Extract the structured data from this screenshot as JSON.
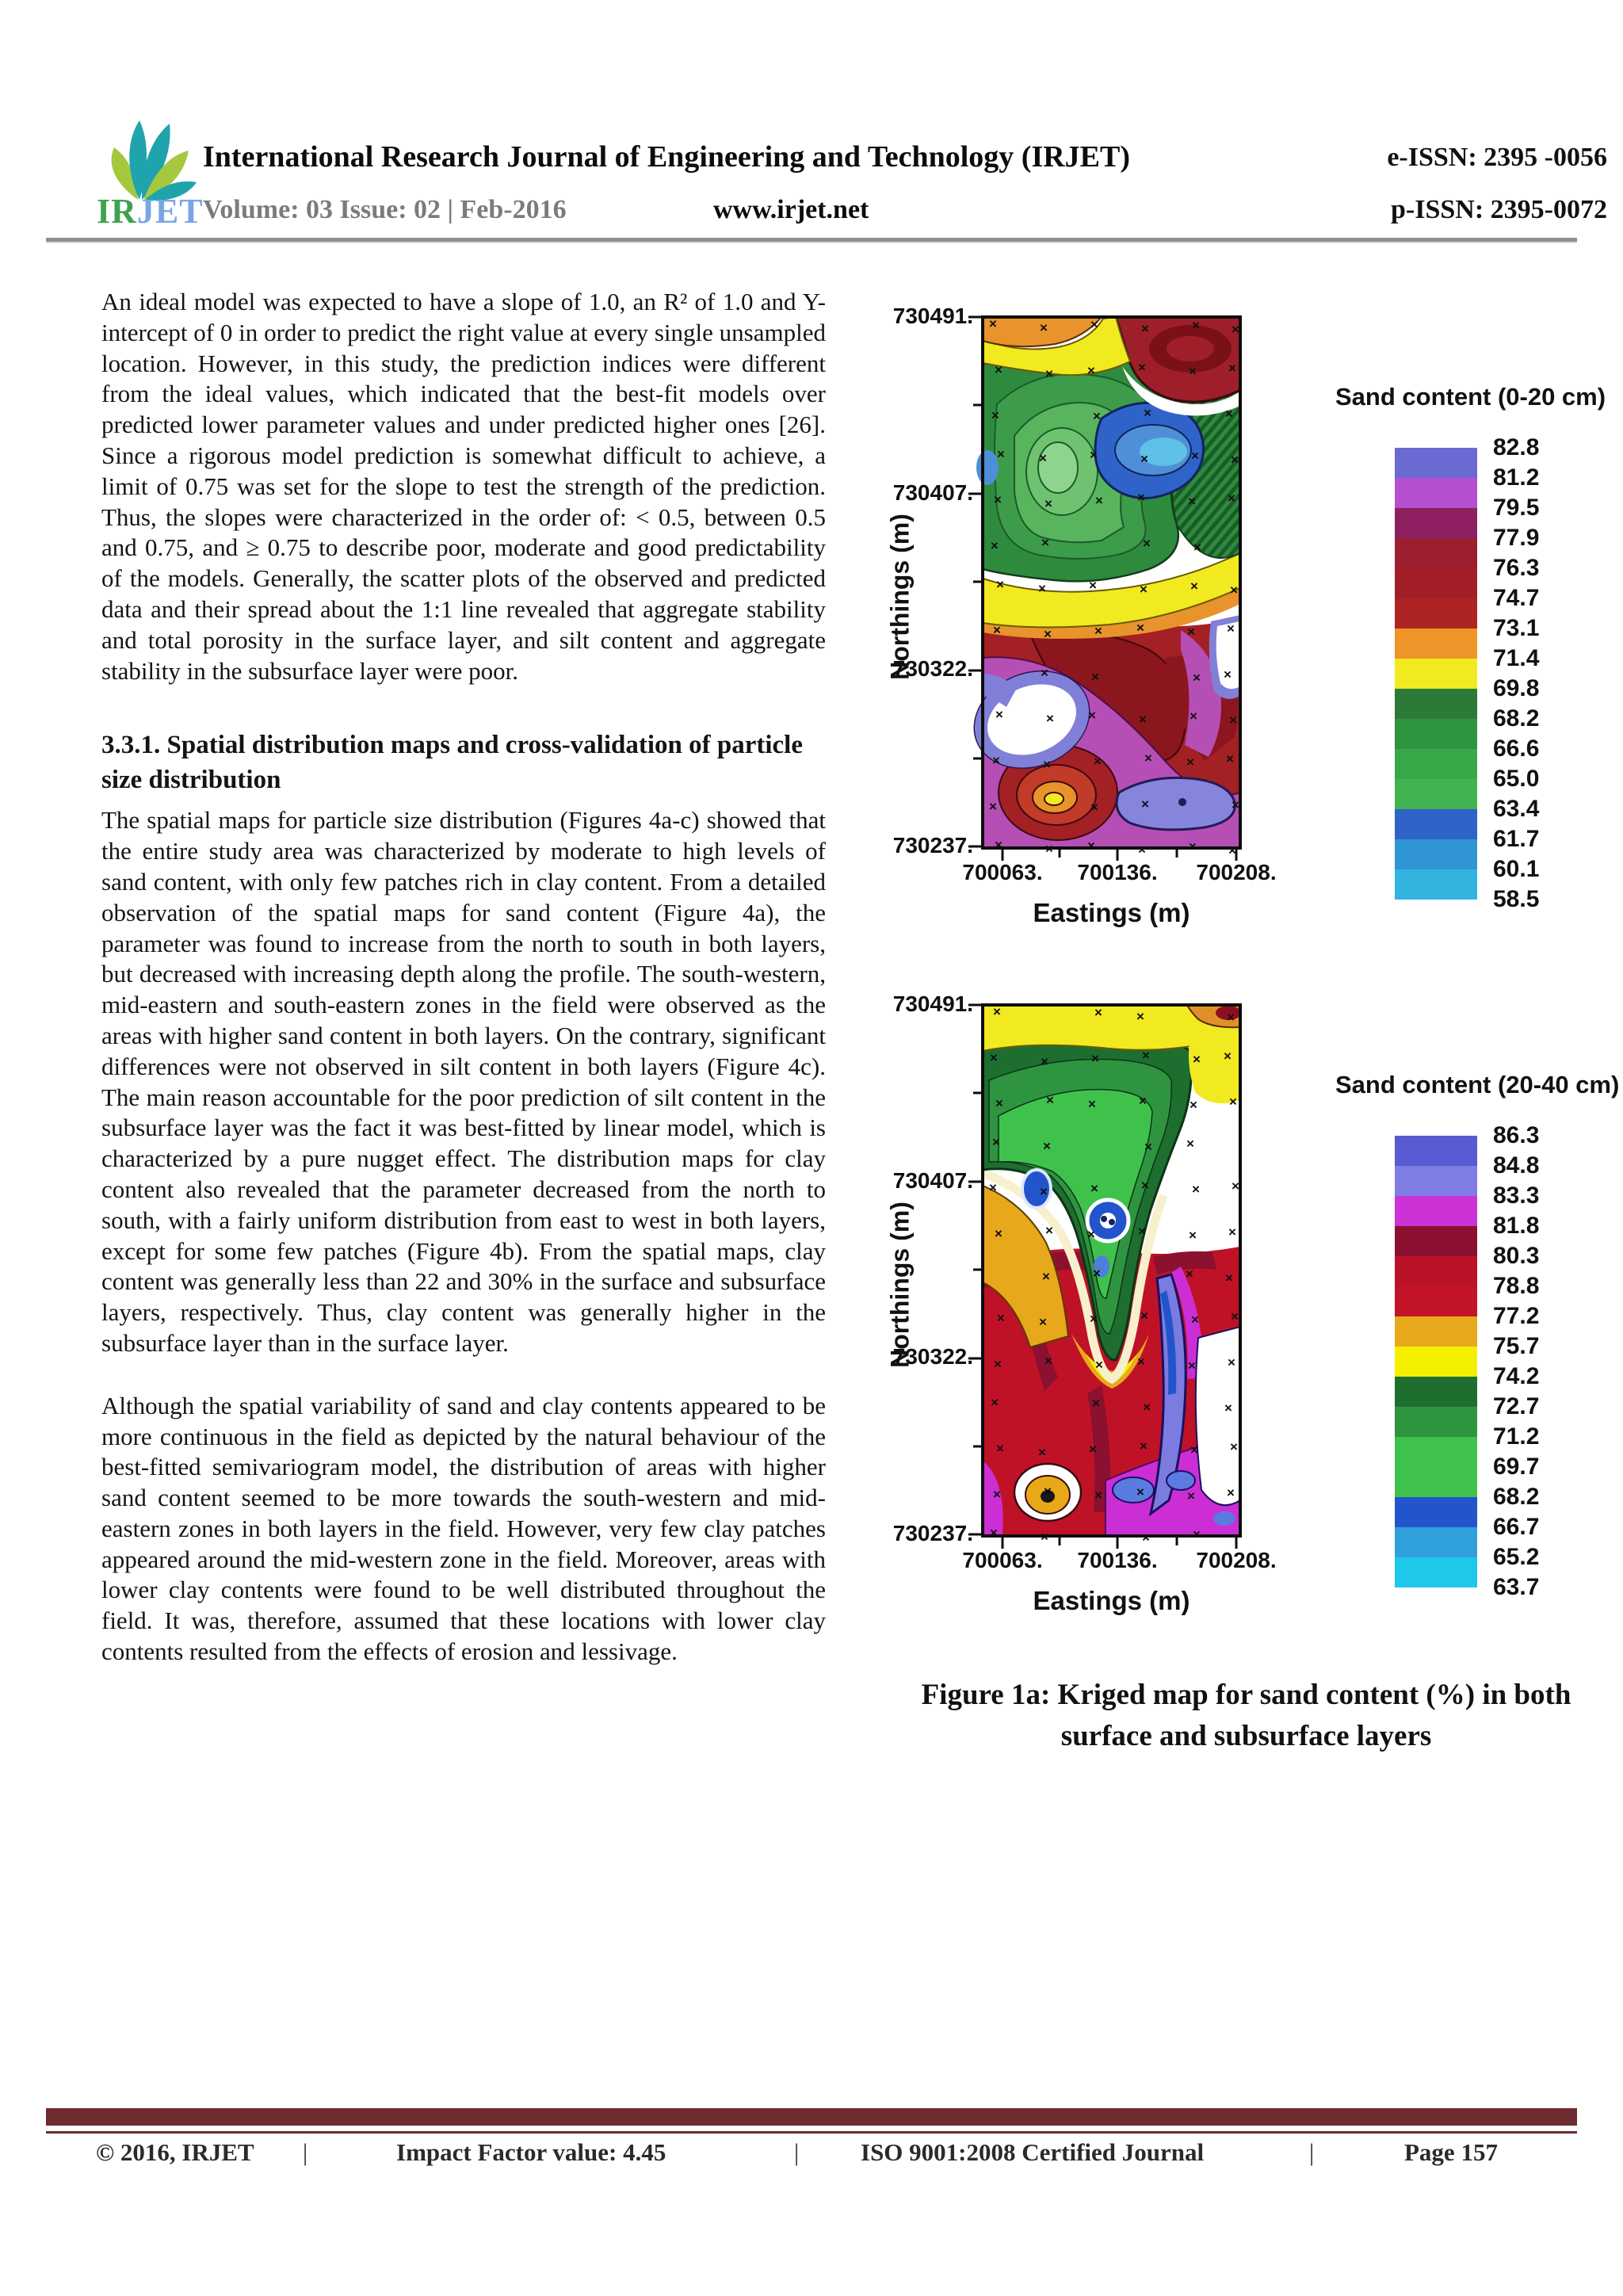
{
  "header": {
    "logo_ir": "IR",
    "logo_jet": "JET",
    "title": "International Research Journal of Engineering and Technology (IRJET)",
    "eissn": "e-ISSN: 2395 -0056",
    "volume": "Volume: 03 Issue: 02 | Feb-2016",
    "website": "www.irjet.net",
    "pissn": "p-ISSN: 2395-0072"
  },
  "article": {
    "para1": "An ideal model was expected to have a slope of 1.0, an R² of 1.0 and Y-intercept of 0 in order to predict the right value at every single unsampled location. However, in this study, the prediction indices were different from the ideal values, which indicated that the best-fit models over predicted lower parameter values and under predicted higher ones [26]. Since a rigorous model prediction is somewhat difficult to achieve, a limit of 0.75 was set for the slope to test the strength of the prediction. Thus, the slopes were characterized in the order of: < 0.5, between 0.5 and 0.75, and ≥ 0.75 to describe poor, moderate and good predictability of the models. Generally, the scatter plots of the observed and predicted data and their spread about the 1:1 line revealed that aggregate stability and total porosity in the surface layer, and silt content and aggregate stability in the subsurface layer were poor.",
    "heading": "3.3.1. Spatial distribution maps and cross-validation of particle size distribution",
    "para2": "The spatial maps for particle size distribution (Figures 4a-c) showed that the entire study area was characterized by moderate to high levels of sand content, with only few patches rich in clay content. From a detailed observation of the spatial maps for sand content (Figure 4a), the parameter was found to increase from the north to south in both layers, but decreased with increasing depth along the profile. The south-western, mid-eastern and south-eastern zones in the field were observed as the areas with higher sand content in both layers. On the contrary, significant differences were not observed in silt content in both layers (Figure 4c). The main reason accountable for the poor prediction of silt content in the subsurface layer was the fact it was best-fitted by linear model, which is characterized by a pure nugget effect. The distribution maps for clay content also revealed that the parameter decreased from the north to south, with a fairly uniform distribution from east to west in both layers, except for some few patches (Figure 4b). From the spatial maps, clay content was generally less than 22 and 30% in the surface and subsurface layers, respectively. Thus, clay content was generally higher in the subsurface layer than in the surface layer.",
    "para3": "Although the spatial variability of sand and clay contents appeared to be more continuous in the field as depicted by the natural behaviour of the best-fitted semivariogram model, the distribution of areas with higher sand content seemed to be more towards the south-western and mid-eastern zones in both layers in the field. However, very few clay patches appeared around the mid-western zone in the field. Moreover, areas with lower clay contents were found to be well distributed throughout the field. It was, therefore, assumed that these locations with lower clay contents resulted from the effects of erosion and lessivage."
  },
  "figure": {
    "caption_line1": "Figure 1a: Kriged map for sand content (%) in both",
    "caption_line2": "surface and subsurface layers",
    "maps": [
      {
        "legend_title": "Sand content (0-20 cm)",
        "ylabel": "Northings (m)",
        "xlabel": "Eastings (m)",
        "yticks": [
          "730491.",
          "730407.",
          "730322.",
          "730237."
        ],
        "xticks": [
          "700063.",
          "700136.",
          "700208."
        ],
        "legend_values": [
          "82.8",
          "81.2",
          "79.5",
          "77.9",
          "76.3",
          "74.7",
          "73.1",
          "71.4",
          "69.8",
          "68.2",
          "66.6",
          "65.0",
          "63.4",
          "61.7",
          "60.1",
          "58.5"
        ],
        "band_colors": [
          "#6a6ad2",
          "#b44fd0",
          "#8e2062",
          "#9b1f2e",
          "#a31f27",
          "#ad2423",
          "#ee9428",
          "#f2ea20",
          "#2c7a38",
          "#2f9440",
          "#38a848",
          "#41b350",
          "#2f63c8",
          "#2f95d4",
          "#32b4de"
        ]
      },
      {
        "legend_title": "Sand content (20-40 cm)",
        "ylabel": "Northings (m)",
        "xlabel": "Eastings (m)",
        "yticks": [
          "730491.",
          "730407.",
          "730322.",
          "730237."
        ],
        "xticks": [
          "700063.",
          "700136.",
          "700208."
        ],
        "legend_values": [
          "86.3",
          "84.8",
          "83.3",
          "81.8",
          "80.3",
          "78.8",
          "77.2",
          "75.7",
          "74.2",
          "72.7",
          "71.2",
          "69.7",
          "68.2",
          "66.7",
          "65.2",
          "63.7"
        ],
        "band_colors": [
          "#5a5ad2",
          "#7d7de4",
          "#cc33d6",
          "#8c1030",
          "#bc1228",
          "#c41427",
          "#e8a81c",
          "#f4f000",
          "#1e6e30",
          "#2f9440",
          "#3fc24c",
          "#3fc24c",
          "#2255cc",
          "#2fa0dc",
          "#1ec8e8"
        ]
      }
    ]
  },
  "footer": {
    "copyright": "© 2016, IRJET",
    "separator": "|",
    "impact": "Impact Factor value: 4.45",
    "iso": "ISO 9001:2008 Certified Journal",
    "page": "Page 157"
  },
  "chart_data": [
    {
      "type": "heatmap",
      "title": "Sand content (0-20 cm)",
      "xlabel": "Eastings (m)",
      "ylabel": "Northings (m)",
      "xlim": [
        700063,
        700208
      ],
      "ylim": [
        730237,
        730491
      ],
      "x_ticks": [
        700063,
        700136,
        700208
      ],
      "y_ticks": [
        730237,
        730322,
        730407,
        730491
      ],
      "legend_scale_percent": [
        82.8,
        81.2,
        79.5,
        77.9,
        76.3,
        74.7,
        73.1,
        71.4,
        69.8,
        68.2,
        66.6,
        65.0,
        63.4,
        61.7,
        60.1,
        58.5
      ],
      "legend_position": "right",
      "description": "Kriged contour map of surface-layer sand content; green/blue low-to-mid values in the north, dark red and magenta high values in the south, sample points marked with x"
    },
    {
      "type": "heatmap",
      "title": "Sand content (20-40 cm)",
      "xlabel": "Eastings (m)",
      "ylabel": "Northings (m)",
      "xlim": [
        700063,
        700208
      ],
      "ylim": [
        730237,
        730491
      ],
      "x_ticks": [
        700063,
        700136,
        700208
      ],
      "y_ticks": [
        730237,
        730322,
        730407,
        730491
      ],
      "legend_scale_percent": [
        86.3,
        84.8,
        83.3,
        81.8,
        80.3,
        78.8,
        77.2,
        75.7,
        74.2,
        72.7,
        71.2,
        69.7,
        68.2,
        66.7,
        65.2,
        63.7
      ],
      "legend_position": "right",
      "description": "Kriged contour map of subsurface-layer sand content; yellow band and dark green zone in the north, crimson and magenta high values in the south, sample points marked with x"
    }
  ]
}
